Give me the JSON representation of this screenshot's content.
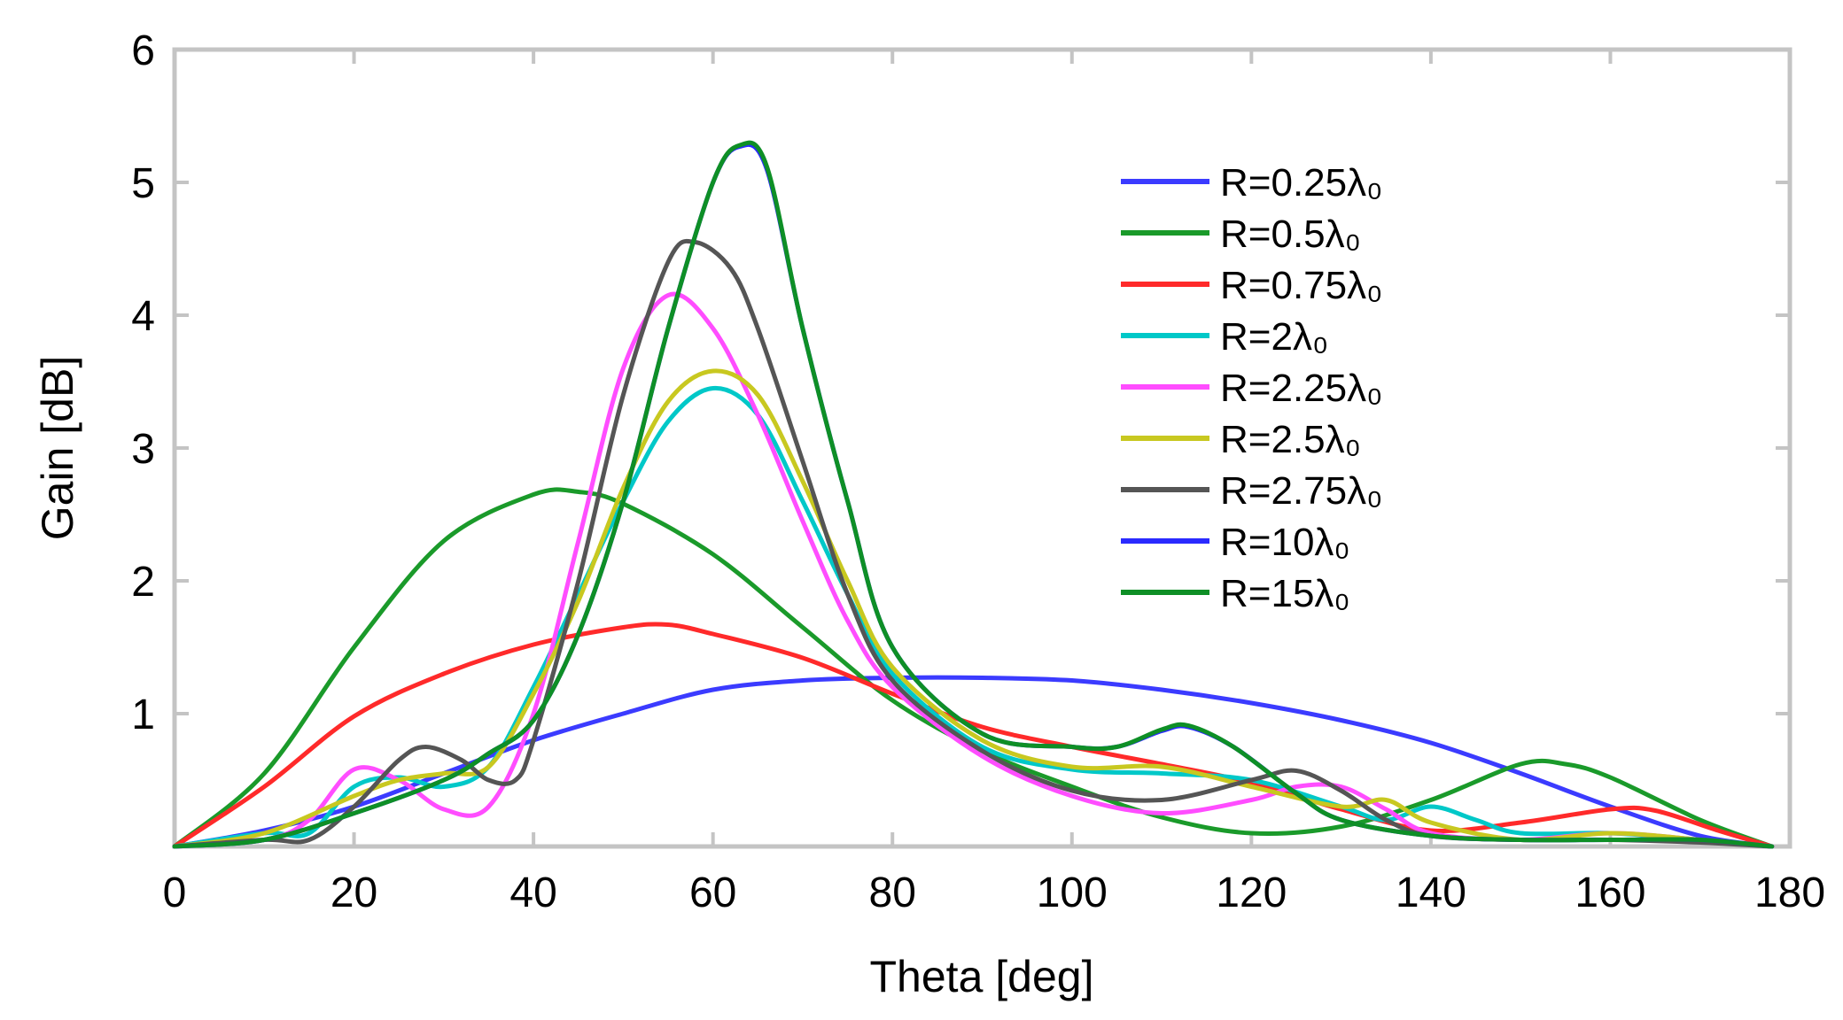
{
  "chart_data": {
    "type": "line",
    "title": "",
    "xlabel": "Theta [deg]",
    "ylabel": "Gain [dB]",
    "xlim": [
      0,
      180
    ],
    "ylim": [
      0,
      6
    ],
    "xticks": [
      0,
      20,
      40,
      60,
      80,
      100,
      120,
      140,
      160,
      180
    ],
    "xtick_labels": [
      "0",
      "20",
      "40",
      "60",
      "80",
      "100",
      "120",
      "140",
      "160",
      "180"
    ],
    "yticks": [
      1,
      2,
      3,
      4,
      5,
      6
    ],
    "ytick_labels": [
      "1",
      "2",
      "3",
      "4",
      "5",
      "6"
    ],
    "grid": false,
    "legend_position": "top-right",
    "series": [
      {
        "name": "R=0.25λ₀",
        "color": "#3b3bff",
        "points": [
          [
            0,
            0
          ],
          [
            10,
            0.12
          ],
          [
            20,
            0.3
          ],
          [
            30,
            0.55
          ],
          [
            40,
            0.8
          ],
          [
            50,
            1.0
          ],
          [
            60,
            1.18
          ],
          [
            70,
            1.25
          ],
          [
            80,
            1.27
          ],
          [
            90,
            1.27
          ],
          [
            100,
            1.25
          ],
          [
            110,
            1.18
          ],
          [
            120,
            1.08
          ],
          [
            130,
            0.95
          ],
          [
            140,
            0.78
          ],
          [
            150,
            0.55
          ],
          [
            160,
            0.3
          ],
          [
            170,
            0.08
          ],
          [
            178,
            0
          ]
        ]
      },
      {
        "name": "R=0.5λ₀",
        "color": "#1a9a2a",
        "points": [
          [
            0,
            0
          ],
          [
            10,
            0.55
          ],
          [
            20,
            1.5
          ],
          [
            30,
            2.3
          ],
          [
            40,
            2.65
          ],
          [
            45,
            2.67
          ],
          [
            50,
            2.58
          ],
          [
            60,
            2.2
          ],
          [
            70,
            1.65
          ],
          [
            80,
            1.1
          ],
          [
            90,
            0.72
          ],
          [
            100,
            0.45
          ],
          [
            110,
            0.22
          ],
          [
            120,
            0.1
          ],
          [
            130,
            0.15
          ],
          [
            140,
            0.35
          ],
          [
            150,
            0.62
          ],
          [
            155,
            0.62
          ],
          [
            160,
            0.52
          ],
          [
            170,
            0.2
          ],
          [
            178,
            0
          ]
        ]
      },
      {
        "name": "R=0.75λ₀",
        "color": "#ff2a2a",
        "points": [
          [
            0,
            0
          ],
          [
            10,
            0.45
          ],
          [
            20,
            0.98
          ],
          [
            30,
            1.3
          ],
          [
            40,
            1.52
          ],
          [
            50,
            1.65
          ],
          [
            55,
            1.67
          ],
          [
            60,
            1.6
          ],
          [
            70,
            1.42
          ],
          [
            80,
            1.15
          ],
          [
            90,
            0.9
          ],
          [
            100,
            0.75
          ],
          [
            110,
            0.62
          ],
          [
            120,
            0.48
          ],
          [
            130,
            0.28
          ],
          [
            140,
            0.12
          ],
          [
            150,
            0.18
          ],
          [
            160,
            0.28
          ],
          [
            165,
            0.27
          ],
          [
            172,
            0.12
          ],
          [
            178,
            0
          ]
        ]
      },
      {
        "name": "R=2λ₀",
        "color": "#00c8c8",
        "points": [
          [
            0,
            0
          ],
          [
            10,
            0.1
          ],
          [
            15,
            0.1
          ],
          [
            20,
            0.45
          ],
          [
            25,
            0.52
          ],
          [
            30,
            0.45
          ],
          [
            35,
            0.6
          ],
          [
            40,
            1.2
          ],
          [
            45,
            1.9
          ],
          [
            50,
            2.6
          ],
          [
            55,
            3.2
          ],
          [
            60,
            3.45
          ],
          [
            65,
            3.25
          ],
          [
            70,
            2.6
          ],
          [
            75,
            1.9
          ],
          [
            80,
            1.3
          ],
          [
            90,
            0.75
          ],
          [
            100,
            0.58
          ],
          [
            110,
            0.55
          ],
          [
            120,
            0.5
          ],
          [
            130,
            0.3
          ],
          [
            135,
            0.2
          ],
          [
            140,
            0.3
          ],
          [
            145,
            0.2
          ],
          [
            150,
            0.1
          ],
          [
            160,
            0.1
          ],
          [
            170,
            0.05
          ],
          [
            178,
            0
          ]
        ]
      },
      {
        "name": "R=2.25λ₀",
        "color": "#ff4dff",
        "points": [
          [
            0,
            0
          ],
          [
            10,
            0.05
          ],
          [
            15,
            0.2
          ],
          [
            20,
            0.58
          ],
          [
            25,
            0.5
          ],
          [
            30,
            0.28
          ],
          [
            35,
            0.3
          ],
          [
            40,
            1.0
          ],
          [
            45,
            2.3
          ],
          [
            50,
            3.6
          ],
          [
            55,
            4.15
          ],
          [
            60,
            3.9
          ],
          [
            65,
            3.25
          ],
          [
            70,
            2.45
          ],
          [
            75,
            1.7
          ],
          [
            80,
            1.2
          ],
          [
            90,
            0.68
          ],
          [
            100,
            0.38
          ],
          [
            110,
            0.25
          ],
          [
            120,
            0.35
          ],
          [
            125,
            0.45
          ],
          [
            130,
            0.45
          ],
          [
            135,
            0.28
          ],
          [
            140,
            0.1
          ],
          [
            150,
            0.05
          ],
          [
            160,
            0.1
          ],
          [
            170,
            0.05
          ],
          [
            178,
            0
          ]
        ]
      },
      {
        "name": "R=2.5λ₀",
        "color": "#c8c820",
        "points": [
          [
            0,
            0
          ],
          [
            10,
            0.1
          ],
          [
            20,
            0.38
          ],
          [
            25,
            0.5
          ],
          [
            30,
            0.55
          ],
          [
            35,
            0.6
          ],
          [
            40,
            1.15
          ],
          [
            45,
            1.85
          ],
          [
            50,
            2.7
          ],
          [
            55,
            3.35
          ],
          [
            60,
            3.58
          ],
          [
            65,
            3.4
          ],
          [
            70,
            2.75
          ],
          [
            75,
            2.0
          ],
          [
            80,
            1.35
          ],
          [
            90,
            0.8
          ],
          [
            100,
            0.6
          ],
          [
            110,
            0.6
          ],
          [
            120,
            0.45
          ],
          [
            130,
            0.3
          ],
          [
            135,
            0.35
          ],
          [
            140,
            0.18
          ],
          [
            150,
            0.05
          ],
          [
            160,
            0.1
          ],
          [
            170,
            0.05
          ],
          [
            178,
            0
          ]
        ]
      },
      {
        "name": "R=2.75λ₀",
        "color": "#555555",
        "points": [
          [
            0,
            0
          ],
          [
            10,
            0.05
          ],
          [
            15,
            0.05
          ],
          [
            20,
            0.3
          ],
          [
            25,
            0.65
          ],
          [
            28,
            0.75
          ],
          [
            32,
            0.65
          ],
          [
            35,
            0.5
          ],
          [
            38,
            0.5
          ],
          [
            40,
            0.8
          ],
          [
            45,
            2.0
          ],
          [
            50,
            3.4
          ],
          [
            55,
            4.4
          ],
          [
            58,
            4.55
          ],
          [
            62,
            4.35
          ],
          [
            65,
            3.9
          ],
          [
            70,
            2.9
          ],
          [
            75,
            1.9
          ],
          [
            80,
            1.25
          ],
          [
            90,
            0.72
          ],
          [
            100,
            0.42
          ],
          [
            110,
            0.35
          ],
          [
            120,
            0.5
          ],
          [
            125,
            0.57
          ],
          [
            130,
            0.42
          ],
          [
            135,
            0.2
          ],
          [
            140,
            0.08
          ],
          [
            150,
            0.05
          ],
          [
            160,
            0.05
          ],
          [
            170,
            0.03
          ],
          [
            178,
            0
          ]
        ]
      },
      {
        "name": "R=10λ₀",
        "color": "#2a2aff",
        "points": [
          [
            0,
            0
          ],
          [
            10,
            0.05
          ],
          [
            20,
            0.25
          ],
          [
            30,
            0.5
          ],
          [
            35,
            0.7
          ],
          [
            40,
            0.95
          ],
          [
            45,
            1.6
          ],
          [
            50,
            2.6
          ],
          [
            55,
            3.9
          ],
          [
            60,
            5.0
          ],
          [
            63,
            5.27
          ],
          [
            66,
            5.1
          ],
          [
            70,
            3.9
          ],
          [
            75,
            2.6
          ],
          [
            80,
            1.5
          ],
          [
            90,
            0.85
          ],
          [
            100,
            0.75
          ],
          [
            105,
            0.75
          ],
          [
            110,
            0.87
          ],
          [
            113,
            0.9
          ],
          [
            118,
            0.75
          ],
          [
            125,
            0.4
          ],
          [
            130,
            0.2
          ],
          [
            140,
            0.08
          ],
          [
            150,
            0.05
          ],
          [
            160,
            0.05
          ],
          [
            170,
            0.05
          ],
          [
            178,
            0
          ]
        ]
      },
      {
        "name": "R=15λ₀",
        "color": "#0e8f26",
        "points": [
          [
            0,
            0
          ],
          [
            10,
            0.05
          ],
          [
            20,
            0.25
          ],
          [
            30,
            0.5
          ],
          [
            35,
            0.7
          ],
          [
            40,
            0.95
          ],
          [
            45,
            1.6
          ],
          [
            50,
            2.6
          ],
          [
            55,
            3.9
          ],
          [
            60,
            5.0
          ],
          [
            63,
            5.28
          ],
          [
            66,
            5.12
          ],
          [
            70,
            3.9
          ],
          [
            75,
            2.6
          ],
          [
            80,
            1.5
          ],
          [
            90,
            0.85
          ],
          [
            100,
            0.75
          ],
          [
            105,
            0.75
          ],
          [
            110,
            0.88
          ],
          [
            113,
            0.91
          ],
          [
            118,
            0.75
          ],
          [
            125,
            0.4
          ],
          [
            130,
            0.2
          ],
          [
            140,
            0.08
          ],
          [
            150,
            0.05
          ],
          [
            160,
            0.05
          ],
          [
            170,
            0.05
          ],
          [
            178,
            0
          ]
        ]
      }
    ]
  }
}
